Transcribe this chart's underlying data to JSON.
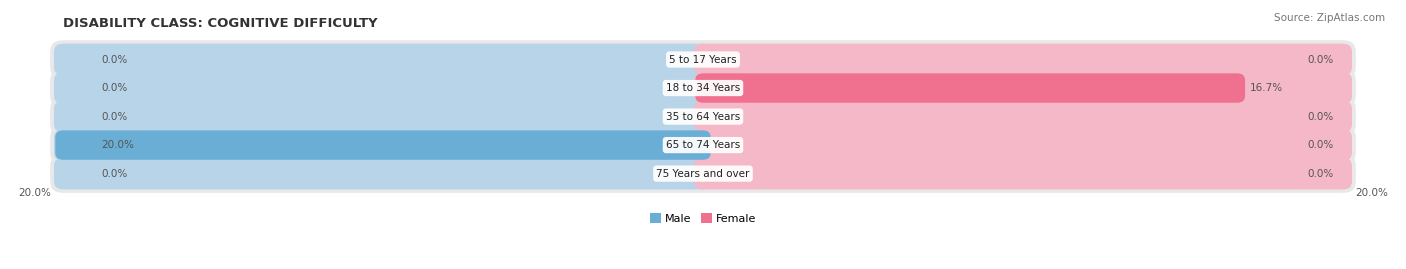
{
  "title": "DISABILITY CLASS: COGNITIVE DIFFICULTY",
  "source": "Source: ZipAtlas.com",
  "categories": [
    "5 to 17 Years",
    "18 to 34 Years",
    "35 to 64 Years",
    "65 to 74 Years",
    "75 Years and over"
  ],
  "male_values": [
    0.0,
    0.0,
    0.0,
    20.0,
    0.0
  ],
  "female_values": [
    0.0,
    16.7,
    0.0,
    0.0,
    0.0
  ],
  "max_val": 20.0,
  "male_color": "#6aaed6",
  "female_color": "#f07090",
  "male_light": "#b8d4e8",
  "female_light": "#f4b8c8",
  "bar_bg": "#e8e8e8",
  "title_fontsize": 9.5,
  "label_fontsize": 7.5,
  "source_fontsize": 7.5,
  "axis_label_left": "20.0%",
  "axis_label_right": "20.0%"
}
